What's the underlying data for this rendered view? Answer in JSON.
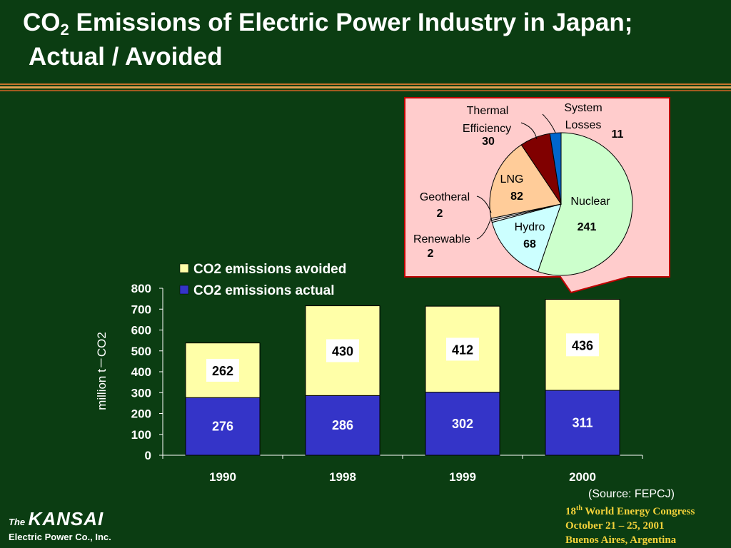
{
  "slide": {
    "title_prefix": "CO",
    "title_sub": "2",
    "title_rest": " Emissions of Electric Power Industry in Japan;",
    "title_line2": "Actual / Avoided",
    "source": "(Source: FEPCJ)",
    "logo_the": "The",
    "logo_brand": "KANSAI",
    "logo_sub": "Electric Power Co., Inc.",
    "event_ordinal": "18",
    "event_ordinal_suffix": "th",
    "event_name": " World Energy Congress",
    "event_dates": "October 21 – 25, 2001",
    "event_place": "Buenos Aires, Argentina"
  },
  "colors": {
    "background": "#0b3d12",
    "actual": "#3434c8",
    "avoided": "#ffffa8",
    "callout_bg": "#ffcccc",
    "callout_border": "#c00000",
    "nuclear": "#ccffcc",
    "hydro": "#ccffff",
    "lng": "#ffcc99",
    "thermal": "#800000",
    "system_losses": "#0066cc"
  },
  "chart_data": [
    {
      "type": "bar",
      "stacked": true,
      "categories": [
        "1990",
        "1998",
        "1999",
        "2000"
      ],
      "series": [
        {
          "name": "CO2 emissions actual",
          "values": [
            276,
            286,
            302,
            311
          ]
        },
        {
          "name": "CO2 emissions avoided",
          "values": [
            262,
            430,
            412,
            436
          ]
        }
      ],
      "ylabel": "million t－CO2",
      "ylim": [
        0,
        800
      ],
      "yticks": [
        "0",
        "100",
        "200",
        "300",
        "400",
        "500",
        "600",
        "700",
        "800"
      ],
      "legend_position": "top-left",
      "grid": false
    },
    {
      "type": "pie",
      "slices": [
        {
          "label": "Nuclear",
          "value": 241
        },
        {
          "label": "Hydro",
          "value": 68
        },
        {
          "label": "Renewable",
          "value": 2
        },
        {
          "label": "Geotheral",
          "value": 2
        },
        {
          "label": "LNG",
          "value": 82
        },
        {
          "label": "Thermal Efficiency",
          "value": 30
        },
        {
          "label": "System Losses",
          "value": 11
        }
      ]
    }
  ]
}
